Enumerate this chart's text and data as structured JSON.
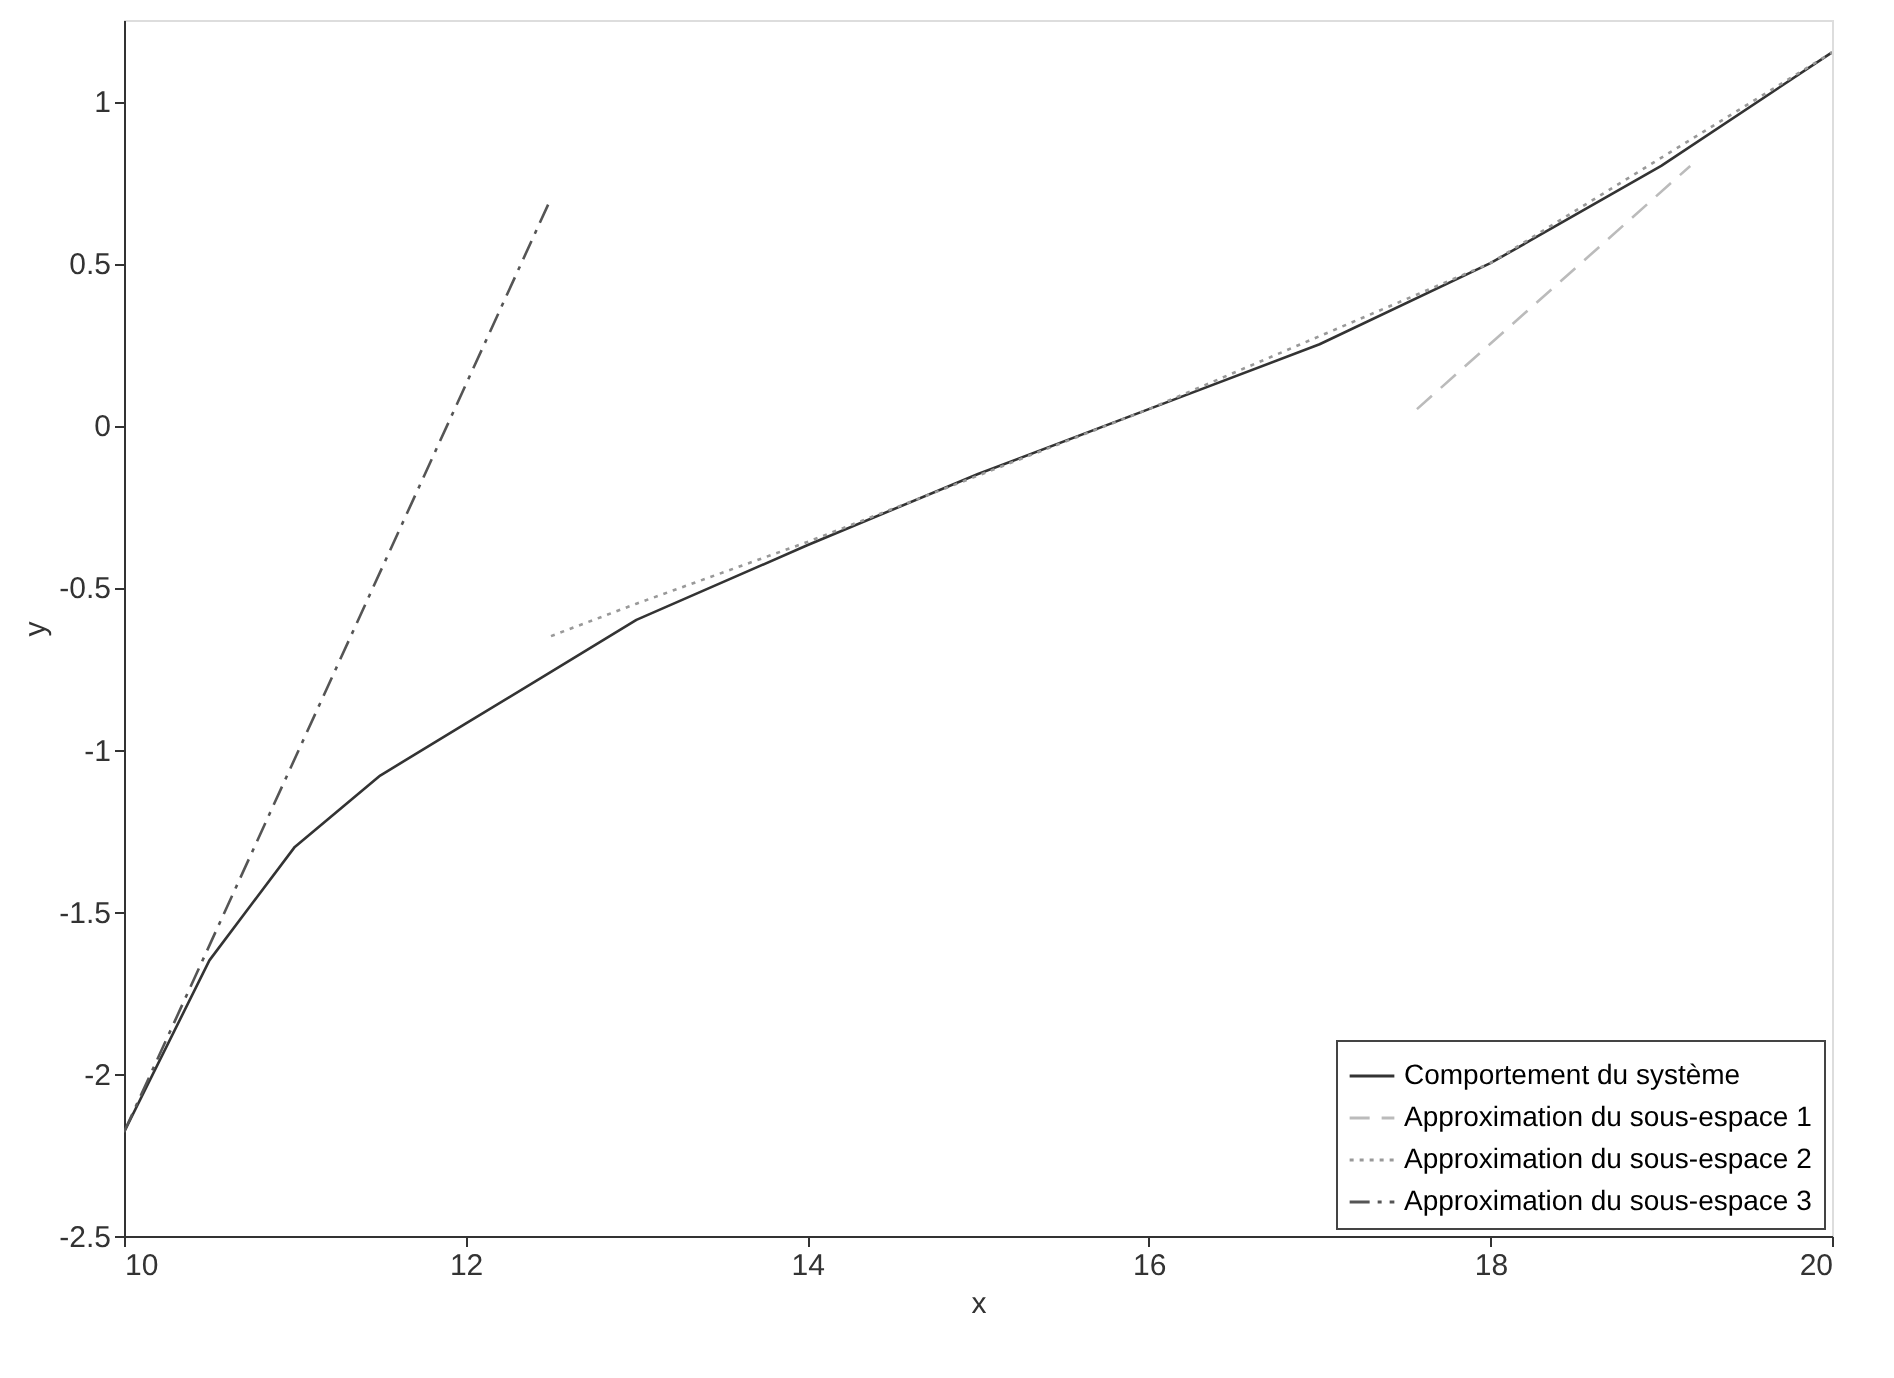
{
  "chart_data": {
    "type": "line",
    "xlabel": "x",
    "ylabel": "y",
    "xlim": [
      10,
      20
    ],
    "ylim": [
      -2.5,
      1.25
    ],
    "xticks": [
      10,
      12,
      14,
      16,
      18,
      20
    ],
    "yticks": [
      -2.5,
      -2,
      -1.5,
      -1,
      -0.5,
      0,
      0.5,
      1
    ],
    "grid": false,
    "legend": "bottom right",
    "marker": "none",
    "series": [
      {
        "name": "Comportement du système",
        "color": "#333333",
        "line_style": "solid",
        "x": [
          10,
          10.5,
          11,
          11.5,
          12,
          12.5,
          13,
          14,
          15,
          16,
          17,
          18,
          19,
          20
        ],
        "values": [
          -2.18,
          -1.65,
          -1.3,
          -1.08,
          -0.92,
          -0.76,
          -0.6,
          -0.37,
          -0.15,
          0.05,
          0.25,
          0.5,
          0.8,
          1.15
        ]
      },
      {
        "name": "Approximation du sous-espace 1",
        "color": "#bbbbbb",
        "line_style": "dashed",
        "x": [
          17.57,
          19.17
        ],
        "values": [
          0.05,
          0.8
        ]
      },
      {
        "name": "Approximation du sous-espace 2",
        "color": "#999999",
        "line_style": "dotted",
        "x": [
          12.5,
          13,
          14,
          16,
          18,
          20
        ],
        "values": [
          -0.65,
          -0.55,
          -0.36,
          0.05,
          0.5,
          1.15
        ]
      },
      {
        "name": "Approximation du sous-espace 3",
        "color": "#555555",
        "line_style": "dashdot",
        "x": [
          10,
          12.5
        ],
        "values": [
          -2.18,
          0.7
        ]
      }
    ]
  }
}
